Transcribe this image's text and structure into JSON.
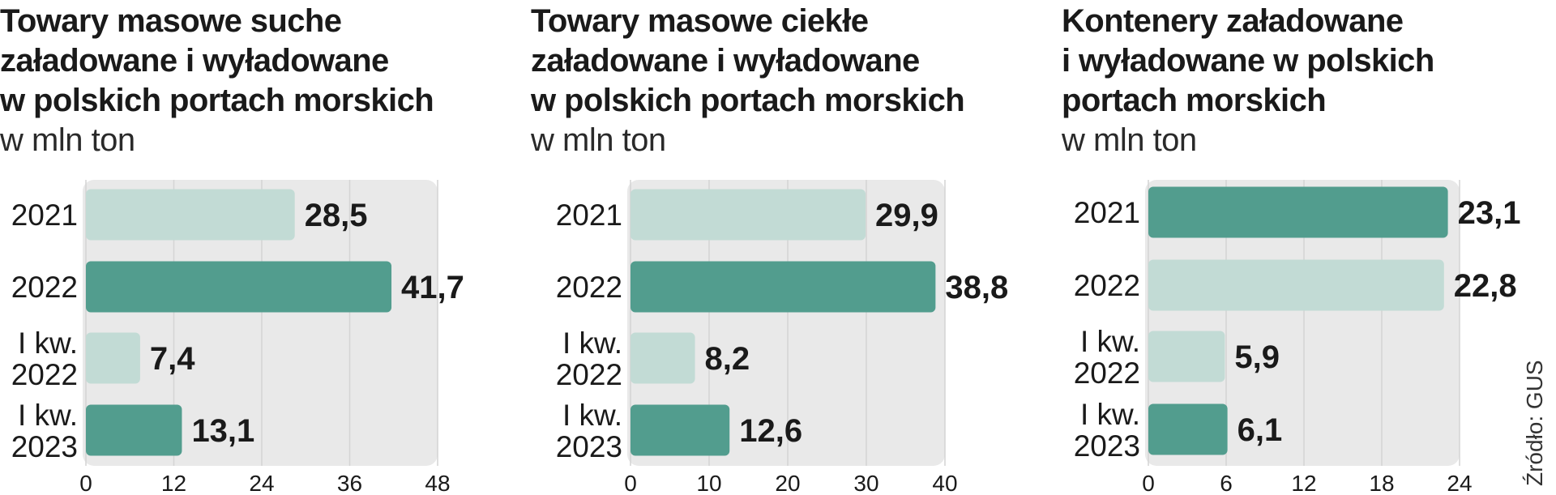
{
  "source": "Źródło: GUS",
  "colors": {
    "dark_bar": "#529d8e",
    "light_bar": "#c2dbd5",
    "plot_bg": "#e9e9e9",
    "grid": "#d4d4d4",
    "text": "#1a1a1a"
  },
  "charts": [
    {
      "title_lines": [
        "Towary masowe suche",
        "załadowane i wyładowane",
        "w polskich portach morskich"
      ],
      "unit": "w mln ton"
    },
    {
      "title_lines": [
        "Towary masowe ciekłe",
        "załadowane i wyładowane",
        "w polskich portach morskich"
      ],
      "unit": "w mln ton"
    },
    {
      "title_lines": [
        "Kontenery załadowane",
        "i wyładowane w polskich",
        "portach morskich"
      ],
      "unit": "w mln ton"
    }
  ],
  "chart_data": [
    {
      "type": "bar",
      "orientation": "horizontal",
      "title": "Towary masowe suche załadowane i wyładowane w polskich portach morskich",
      "unit": "w mln ton",
      "categories": [
        [
          "2021"
        ],
        [
          "2022"
        ],
        [
          "I kw.",
          "2022"
        ],
        [
          "I kw.",
          "2023"
        ]
      ],
      "values": [
        28.5,
        41.7,
        7.4,
        13.1
      ],
      "value_labels": [
        "28,5",
        "41,7",
        "7,4",
        "13,1"
      ],
      "highlight": [
        false,
        true,
        false,
        true
      ],
      "xlim": [
        0,
        48
      ],
      "ticks": [
        0,
        12,
        24,
        36,
        48
      ],
      "grid": true
    },
    {
      "type": "bar",
      "orientation": "horizontal",
      "title": "Towary masowe ciekłe załadowane i wyładowane w polskich portach morskich",
      "unit": "w mln ton",
      "categories": [
        [
          "2021"
        ],
        [
          "2022"
        ],
        [
          "I kw.",
          "2022"
        ],
        [
          "I kw.",
          "2023"
        ]
      ],
      "values": [
        29.9,
        38.8,
        8.2,
        12.6
      ],
      "value_labels": [
        "29,9",
        "38,8",
        "8,2",
        "12,6"
      ],
      "highlight": [
        false,
        true,
        false,
        true
      ],
      "xlim": [
        0,
        40
      ],
      "ticks": [
        0,
        10,
        20,
        30,
        40
      ],
      "grid": true
    },
    {
      "type": "bar",
      "orientation": "horizontal",
      "title": "Kontenery załadowane i wyładowane w polskich portach morskich",
      "unit": "w mln ton",
      "categories": [
        [
          "2021"
        ],
        [
          "2022"
        ],
        [
          "I kw.",
          "2022"
        ],
        [
          "I kw.",
          "2023"
        ]
      ],
      "values": [
        23.1,
        22.8,
        5.9,
        6.1
      ],
      "value_labels": [
        "23,1",
        "22,8",
        "5,9",
        "6,1"
      ],
      "highlight": [
        true,
        false,
        false,
        true
      ],
      "xlim": [
        0,
        24
      ],
      "ticks": [
        0,
        6,
        12,
        18,
        24
      ],
      "grid": true
    }
  ]
}
